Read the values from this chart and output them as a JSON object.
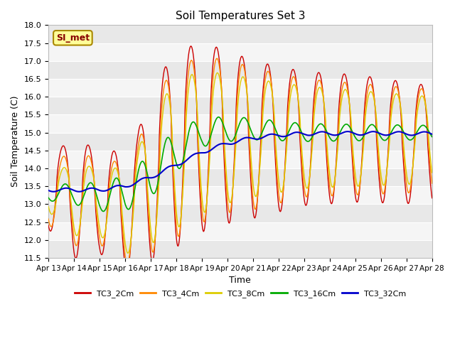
{
  "title": "Soil Temperatures Set 3",
  "xlabel": "Time",
  "ylabel": "Soil Temperature (C)",
  "ylim": [
    11.5,
    18.0
  ],
  "yticks": [
    11.5,
    12.0,
    12.5,
    13.0,
    13.5,
    14.0,
    14.5,
    15.0,
    15.5,
    16.0,
    16.5,
    17.0,
    17.5,
    18.0
  ],
  "xtick_labels": [
    "Apr 13",
    "Apr 14",
    "Apr 15",
    "Apr 16",
    "Apr 17",
    "Apr 18",
    "Apr 19",
    "Apr 20",
    "Apr 21",
    "Apr 22",
    "Apr 23",
    "Apr 24",
    "Apr 25",
    "Apr 26",
    "Apr 27",
    "Apr 28"
  ],
  "colors": {
    "TC3_2Cm": "#cc0000",
    "TC3_4Cm": "#ff8800",
    "TC3_8Cm": "#ddcc00",
    "TC3_16Cm": "#00aa00",
    "TC3_32Cm": "#0000cc"
  },
  "legend_label": "SI_met",
  "background_color": "#ffffff",
  "plot_bg_color": "#e8e8e8",
  "band_colors": [
    "#e8e8e8",
    "#f5f5f5"
  ]
}
